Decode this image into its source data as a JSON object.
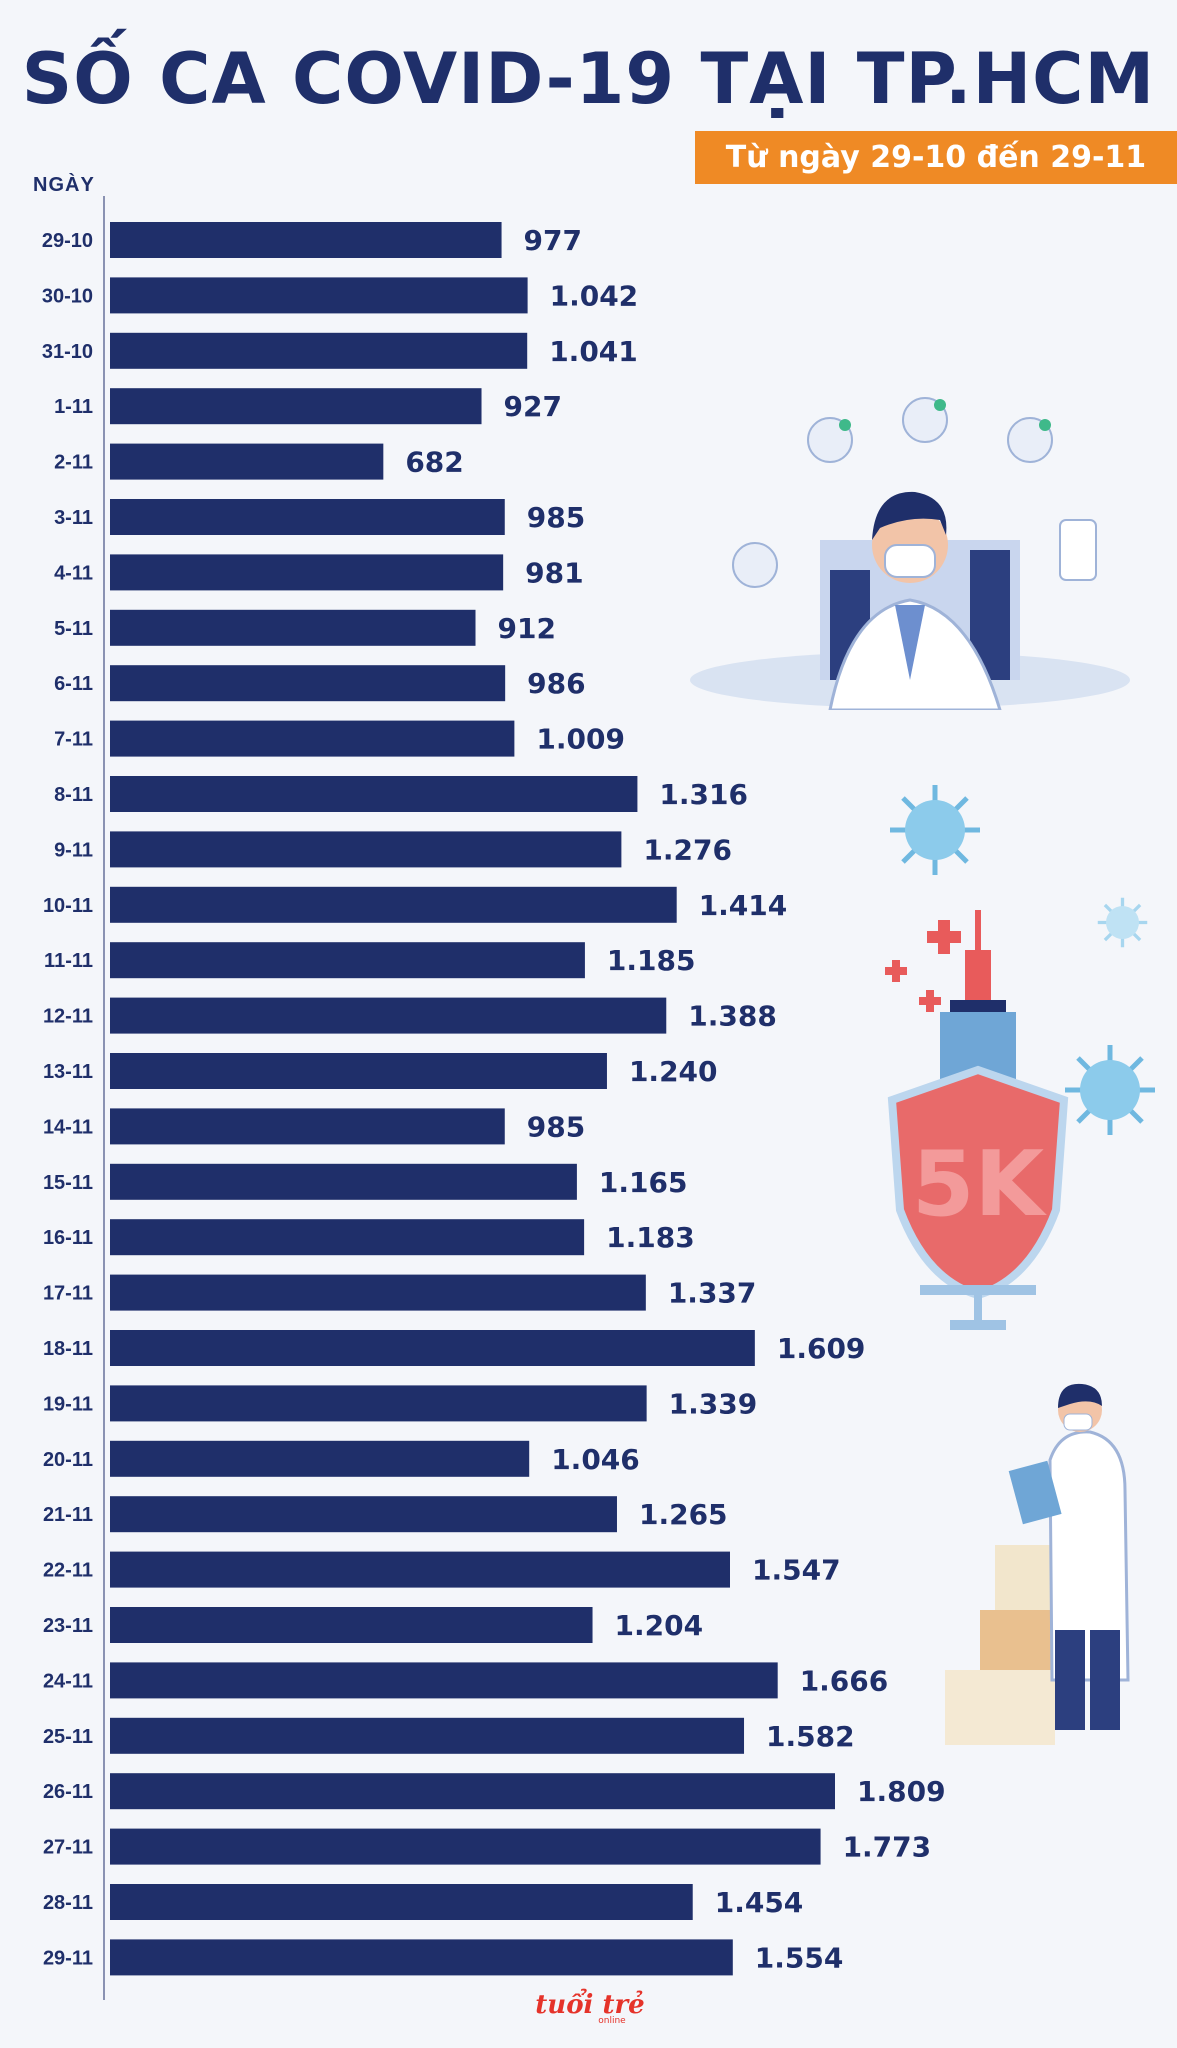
{
  "colors": {
    "bar": "#1f2f6a",
    "accent": "#ef8a25",
    "background": "#f4f6fa",
    "logo": "#e5332a"
  },
  "chart_data": {
    "type": "bar",
    "orientation": "horizontal",
    "title": "SỐ CA COVID-19 TẠI TP.HCM",
    "subtitle": "Từ ngày 29-10 đến 29-11",
    "ylabel": "NGÀY",
    "xlim": [
      0,
      1900
    ],
    "categories": [
      "29-10",
      "30-10",
      "31-10",
      "1-11",
      "2-11",
      "3-11",
      "4-11",
      "5-11",
      "6-11",
      "7-11",
      "8-11",
      "9-11",
      "10-11",
      "11-11",
      "12-11",
      "13-11",
      "14-11",
      "15-11",
      "16-11",
      "17-11",
      "18-11",
      "19-11",
      "20-11",
      "21-11",
      "22-11",
      "23-11",
      "24-11",
      "25-11",
      "26-11",
      "27-11",
      "28-11",
      "29-11"
    ],
    "values": [
      977,
      1042,
      1041,
      927,
      682,
      985,
      981,
      912,
      986,
      1009,
      1316,
      1276,
      1414,
      1185,
      1388,
      1240,
      985,
      1165,
      1183,
      1337,
      1609,
      1339,
      1046,
      1265,
      1547,
      1204,
      1666,
      1582,
      1809,
      1773,
      1454,
      1554
    ],
    "labels": [
      "977",
      "1.042",
      "1.041",
      "927",
      "682",
      "985",
      "981",
      "912",
      "986",
      "1.009",
      "1.316",
      "1.276",
      "1.414",
      "1.185",
      "1.388",
      "1.240",
      "985",
      "1.165",
      "1.183",
      "1.337",
      "1.609",
      "1.339",
      "1.046",
      "1.265",
      "1.547",
      "1.204",
      "1.666",
      "1.582",
      "1.809",
      "1.773",
      "1.454",
      "1.554"
    ]
  },
  "illustration_text": {
    "shield": "5K"
  },
  "logo": {
    "name": "tuổi trẻ",
    "sub": "online"
  }
}
